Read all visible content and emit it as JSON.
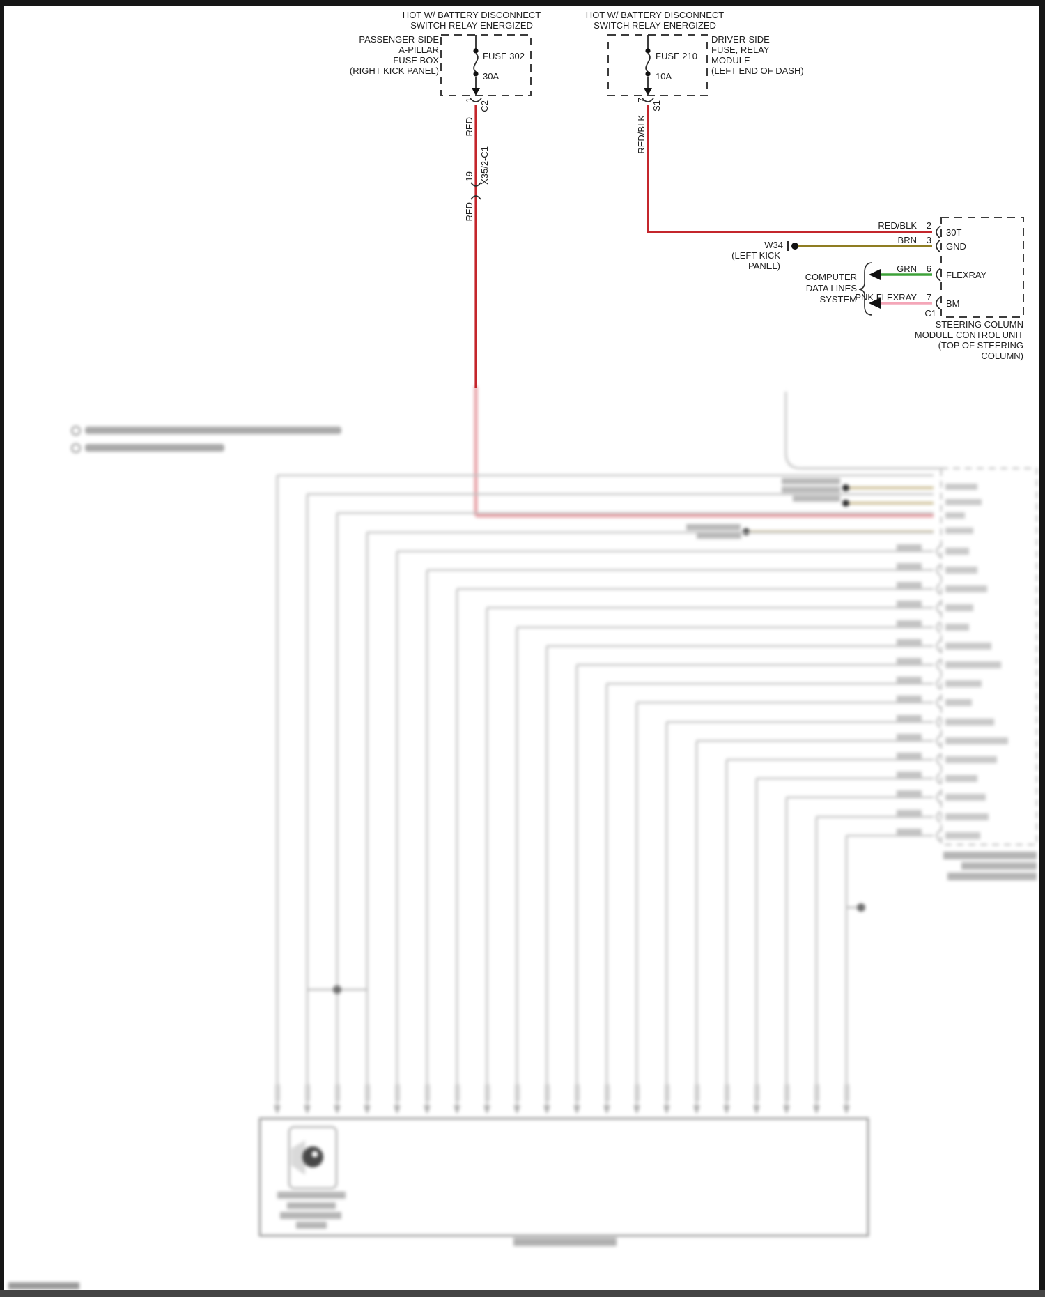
{
  "circuit1": {
    "header1": "HOT W/ BATTERY DISCONNECT",
    "header2": "SWITCH RELAY ENERGIZED",
    "location1": "PASSENGER-SIDE",
    "location2": "A-PILLAR",
    "location3": "FUSE BOX",
    "location4": "(RIGHT KICK PANEL)",
    "fuse": "FUSE 302",
    "amps": "30A",
    "pin": "1",
    "connector": "C2",
    "wire_color_a": "RED",
    "inline_connector": "X35/2-C1",
    "inline_pin": "19",
    "wire_color_b": "RED"
  },
  "circuit2": {
    "header1": "HOT W/ BATTERY DISCONNECT",
    "header2": "SWITCH RELAY ENERGIZED",
    "location1": "DRIVER-SIDE",
    "location2": "FUSE, RELAY",
    "location3": "MODULE",
    "location4": "(LEFT END OF DASH)",
    "fuse": "FUSE 210",
    "amps": "10A",
    "pin": "7",
    "connector": "S1",
    "wire_color": "RED/BLK"
  },
  "ground": {
    "name": "W34",
    "location1": "(LEFT KICK",
    "location2": "PANEL)"
  },
  "data_lines": {
    "line1": "COMPUTER",
    "line2": "DATA LINES",
    "line3": "SYSTEM"
  },
  "module": {
    "rows": [
      {
        "wire": "RED/BLK",
        "pin": "2",
        "terminal": "30T"
      },
      {
        "wire": "BRN",
        "pin": "3",
        "terminal": "GND"
      },
      {
        "wire": "GRN",
        "pin": "6",
        "terminal": "FLEXRAY"
      },
      {
        "wire": "PNK FLEXRAY",
        "pin": "7",
        "terminal": "BM"
      }
    ],
    "connector": "C1",
    "name1": "STEERING COLUMN",
    "name2": "MODULE CONTROL UNIT",
    "name3": "(TOP OF STEERING",
    "name4": "COLUMN)"
  },
  "colors": {
    "red": "#c4262c",
    "faded_red": "#e59aa0",
    "brown": "#8f7d22",
    "green": "#3ea23a",
    "pink": "#f4a6b8",
    "blur_gray": "#c0c0c0"
  }
}
